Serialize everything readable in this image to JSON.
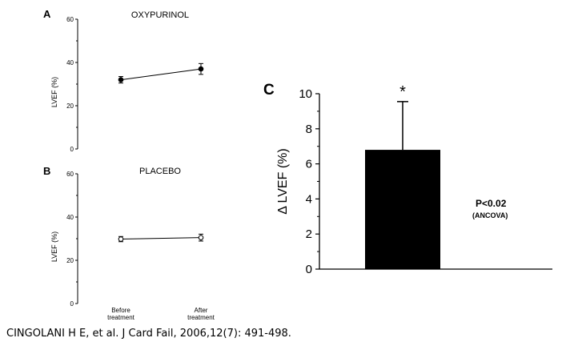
{
  "citation": "CINGOLANI H E, et al. J Card Fail, 2006,12(7): 491-498.",
  "chart_data": [
    {
      "panel": "A",
      "type": "line",
      "title": "OXYPURINOL",
      "ylabel": "LVEF (%)",
      "ylim": [
        0,
        60
      ],
      "yticks": [
        "0",
        "20",
        "40",
        "60"
      ],
      "categories": [
        "Before treatment",
        "After treatment"
      ],
      "values": [
        32,
        37
      ],
      "errors": [
        1.5,
        2.5
      ],
      "marker": "filled"
    },
    {
      "panel": "B",
      "type": "line",
      "title": "PLACEBO",
      "ylabel": "LVEF (%)",
      "ylim": [
        0,
        60
      ],
      "yticks": [
        "0",
        "20",
        "40",
        "60"
      ],
      "categories": [
        "Before treatment",
        "After treatment"
      ],
      "values": [
        29.8,
        30.5
      ],
      "errors": [
        1.2,
        1.6
      ],
      "marker": "open"
    },
    {
      "panel": "C",
      "type": "bar",
      "ylabel": "Δ LVEF (%)",
      "ylim": [
        0,
        10
      ],
      "yticks": [
        "0",
        "2",
        "4",
        "6",
        "8",
        "10"
      ],
      "categories": [
        ""
      ],
      "values": [
        6.8
      ],
      "errors": [
        2.75
      ],
      "significance": "*",
      "annotation": "P<0.02",
      "annotation_sub": "(ANCOVA)"
    }
  ]
}
